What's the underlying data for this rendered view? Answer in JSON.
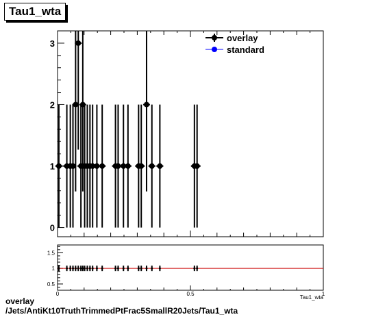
{
  "title": "Tau1_wta",
  "caption": {
    "line1": "overlay",
    "line2": "/Jets/AntiKt10TruthTrimmedPtFrac5SmallR20Jets/Tau1_wta"
  },
  "colors": {
    "overlay": "#000000",
    "standard": "#0000ff",
    "ratio_line": "#cc0000"
  },
  "chart_data": [
    {
      "type": "scatter",
      "title": "Tau1_wta",
      "xlim": [
        0,
        1
      ],
      "ylim": [
        -0.15,
        3.2
      ],
      "yticks": [
        0,
        1,
        2,
        3
      ],
      "xticks": [
        0,
        0.5,
        1
      ],
      "legend": {
        "placement": "top-right",
        "entries": [
          "overlay",
          "standard"
        ]
      },
      "series": [
        {
          "name": "overlay",
          "points": [
            {
              "x": 0.005,
              "y": 1
            },
            {
              "x": 0.035,
              "y": 1
            },
            {
              "x": 0.048,
              "y": 1
            },
            {
              "x": 0.058,
              "y": 1
            },
            {
              "x": 0.068,
              "y": 2
            },
            {
              "x": 0.078,
              "y": 3
            },
            {
              "x": 0.088,
              "y": 1
            },
            {
              "x": 0.095,
              "y": 2
            },
            {
              "x": 0.102,
              "y": 1
            },
            {
              "x": 0.112,
              "y": 1
            },
            {
              "x": 0.122,
              "y": 1
            },
            {
              "x": 0.132,
              "y": 1
            },
            {
              "x": 0.148,
              "y": 1
            },
            {
              "x": 0.168,
              "y": 1
            },
            {
              "x": 0.218,
              "y": 1
            },
            {
              "x": 0.228,
              "y": 1
            },
            {
              "x": 0.248,
              "y": 1
            },
            {
              "x": 0.265,
              "y": 1
            },
            {
              "x": 0.305,
              "y": 1
            },
            {
              "x": 0.315,
              "y": 1
            },
            {
              "x": 0.335,
              "y": 2
            },
            {
              "x": 0.355,
              "y": 1
            },
            {
              "x": 0.385,
              "y": 1
            },
            {
              "x": 0.515,
              "y": 1
            },
            {
              "x": 0.525,
              "y": 1
            }
          ]
        },
        {
          "name": "standard",
          "points": []
        }
      ]
    },
    {
      "type": "line",
      "title": "",
      "xlabel": "Tau1_wta",
      "xlim": [
        0,
        1
      ],
      "ylim": [
        0.3,
        1.75
      ],
      "yticks": [
        0.5,
        1,
        1.5
      ],
      "xticks": [
        0,
        0.5,
        1
      ],
      "reference_value": 1,
      "series": [
        {
          "values": [
            1
          ]
        }
      ]
    }
  ]
}
